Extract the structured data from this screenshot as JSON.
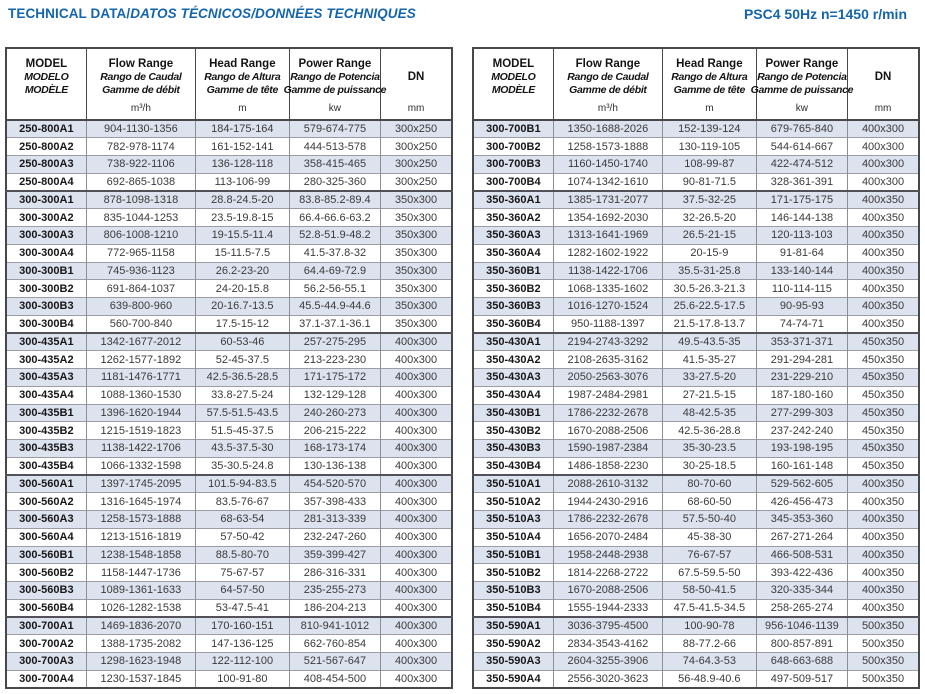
{
  "titlebar": {
    "main": "TECHNICAL DATA/",
    "main_italic": "DATOS TÉCNICOS/DONNÉES TECHNIQUES",
    "right": "PSC4 50Hz  n=1450 r/min"
  },
  "colors": {
    "accent_blue": "#1565ac",
    "row_stripe": "#dde3ee",
    "border_dark": "#48484c"
  },
  "header": {
    "model_lines": [
      "MODEL",
      "MODELO",
      "MODÈLE"
    ],
    "flow_lines": [
      "Flow Range",
      "Rango de Caudal",
      "Gamme de débit"
    ],
    "head_lines": [
      "Head Range",
      "Rango de Altura",
      "Gamme de tête"
    ],
    "power_lines": [
      "Power Range",
      "Rango de Potencia",
      "Gamme de puissance"
    ],
    "dn_label": "DN",
    "units": {
      "flow": "m³/h",
      "head": "m",
      "power": "kw",
      "dn": "mm"
    }
  },
  "tables": [
    {
      "rows": [
        {
          "model": "250-800A1",
          "flow": "904-1130-1356",
          "head": "184-175-164",
          "power": "579-674-775",
          "dn": "300x250",
          "group": false
        },
        {
          "model": "250-800A2",
          "flow": "782-978-1174",
          "head": "161-152-141",
          "power": "444-513-578",
          "dn": "300x250",
          "group": false
        },
        {
          "model": "250-800A3",
          "flow": "738-922-1106",
          "head": "136-128-118",
          "power": "358-415-465",
          "dn": "300x250",
          "group": false
        },
        {
          "model": "250-800A4",
          "flow": "692-865-1038",
          "head": "113-106-99",
          "power": "280-325-360",
          "dn": "300x250",
          "group": false
        },
        {
          "model": "300-300A1",
          "flow": "878-1098-1318",
          "head": "28.8-24.5-20",
          "power": "83.8-85.2-89.4",
          "dn": "350x300",
          "group": true
        },
        {
          "model": "300-300A2",
          "flow": "835-1044-1253",
          "head": "23.5-19.8-15",
          "power": "66.4-66.6-63.2",
          "dn": "350x300",
          "group": false
        },
        {
          "model": "300-300A3",
          "flow": "806-1008-1210",
          "head": "19-15.5-11.4",
          "power": "52.8-51.9-48.2",
          "dn": "350x300",
          "group": false
        },
        {
          "model": "300-300A4",
          "flow": "772-965-1158",
          "head": "15-11.5-7.5",
          "power": "41.5-37.8-32",
          "dn": "350x300",
          "group": false
        },
        {
          "model": "300-300B1",
          "flow": "745-936-1123",
          "head": "26.2-23-20",
          "power": "64.4-69-72.9",
          "dn": "350x300",
          "group": false
        },
        {
          "model": "300-300B2",
          "flow": "691-864-1037",
          "head": "24-20-15.8",
          "power": "56.2-56-55.1",
          "dn": "350x300",
          "group": false
        },
        {
          "model": "300-300B3",
          "flow": "639-800-960",
          "head": "20-16.7-13.5",
          "power": "45.5-44.9-44.6",
          "dn": "350x300",
          "group": false
        },
        {
          "model": "300-300B4",
          "flow": "560-700-840",
          "head": "17.5-15-12",
          "power": "37.1-37.1-36.1",
          "dn": "350x300",
          "group": false
        },
        {
          "model": "300-435A1",
          "flow": "1342-1677-2012",
          "head": "60-53-46",
          "power": "257-275-295",
          "dn": "400x300",
          "group": true
        },
        {
          "model": "300-435A2",
          "flow": "1262-1577-1892",
          "head": "52-45-37.5",
          "power": "213-223-230",
          "dn": "400x300",
          "group": false
        },
        {
          "model": "300-435A3",
          "flow": "1181-1476-1771",
          "head": "42.5-36.5-28.5",
          "power": "171-175-172",
          "dn": "400x300",
          "group": false
        },
        {
          "model": "300-435A4",
          "flow": "1088-1360-1530",
          "head": "33.8-27.5-24",
          "power": "132-129-128",
          "dn": "400x300",
          "group": false
        },
        {
          "model": "300-435B1",
          "flow": "1396-1620-1944",
          "head": "57.5-51.5-43.5",
          "power": "240-260-273",
          "dn": "400x300",
          "group": false
        },
        {
          "model": "300-435B2",
          "flow": "1215-1519-1823",
          "head": "51.5-45-37.5",
          "power": "206-215-222",
          "dn": "400x300",
          "group": false
        },
        {
          "model": "300-435B3",
          "flow": "1138-1422-1706",
          "head": "43.5-37.5-30",
          "power": "168-173-174",
          "dn": "400x300",
          "group": false
        },
        {
          "model": "300-435B4",
          "flow": "1066-1332-1598",
          "head": "35-30.5-24.8",
          "power": "130-136-138",
          "dn": "400x300",
          "group": false
        },
        {
          "model": "300-560A1",
          "flow": "1397-1745-2095",
          "head": "101.5-94-83.5",
          "power": "454-520-570",
          "dn": "400x300",
          "group": true
        },
        {
          "model": "300-560A2",
          "flow": "1316-1645-1974",
          "head": "83.5-76-67",
          "power": "357-398-433",
          "dn": "400x300",
          "group": false
        },
        {
          "model": "300-560A3",
          "flow": "1258-1573-1888",
          "head": "68-63-54",
          "power": "281-313-339",
          "dn": "400x300",
          "group": false
        },
        {
          "model": "300-560A4",
          "flow": "1213-1516-1819",
          "head": "57-50-42",
          "power": "232-247-260",
          "dn": "400x300",
          "group": false
        },
        {
          "model": "300-560B1",
          "flow": "1238-1548-1858",
          "head": "88.5-80-70",
          "power": "359-399-427",
          "dn": "400x300",
          "group": false
        },
        {
          "model": "300-560B2",
          "flow": "1158-1447-1736",
          "head": "75-67-57",
          "power": "286-316-331",
          "dn": "400x300",
          "group": false
        },
        {
          "model": "300-560B3",
          "flow": "1089-1361-1633",
          "head": "64-57-50",
          "power": "235-255-273",
          "dn": "400x300",
          "group": false
        },
        {
          "model": "300-560B4",
          "flow": "1026-1282-1538",
          "head": "53-47.5-41",
          "power": "186-204-213",
          "dn": "400x300",
          "group": false
        },
        {
          "model": "300-700A1",
          "flow": "1469-1836-2070",
          "head": "170-160-151",
          "power": "810-941-1012",
          "dn": "400x300",
          "group": true
        },
        {
          "model": "300-700A2",
          "flow": "1388-1735-2082",
          "head": "147-136-125",
          "power": "662-760-854",
          "dn": "400x300",
          "group": false
        },
        {
          "model": "300-700A3",
          "flow": "1298-1623-1948",
          "head": "122-112-100",
          "power": "521-567-647",
          "dn": "400x300",
          "group": false
        },
        {
          "model": "300-700A4",
          "flow": "1230-1537-1845",
          "head": "100-91-80",
          "power": "408-454-500",
          "dn": "400x300",
          "group": false
        }
      ]
    },
    {
      "rows": [
        {
          "model": "300-700B1",
          "flow": "1350-1688-2026",
          "head": "152-139-124",
          "power": "679-765-840",
          "dn": "400x300",
          "group": false
        },
        {
          "model": "300-700B2",
          "flow": "1258-1573-1888",
          "head": "130-119-105",
          "power": "544-614-667",
          "dn": "400x300",
          "group": false
        },
        {
          "model": "300-700B3",
          "flow": "1160-1450-1740",
          "head": "108-99-87",
          "power": "422-474-512",
          "dn": "400x300",
          "group": false
        },
        {
          "model": "300-700B4",
          "flow": "1074-1342-1610",
          "head": "90-81-71.5",
          "power": "328-361-391",
          "dn": "400x300",
          "group": false
        },
        {
          "model": "350-360A1",
          "flow": "1385-1731-2077",
          "head": "37.5-32-25",
          "power": "171-175-175",
          "dn": "400x350",
          "group": true
        },
        {
          "model": "350-360A2",
          "flow": "1354-1692-2030",
          "head": "32-26.5-20",
          "power": "146-144-138",
          "dn": "400x350",
          "group": false
        },
        {
          "model": "350-360A3",
          "flow": "1313-1641-1969",
          "head": "26.5-21-15",
          "power": "120-113-103",
          "dn": "400x350",
          "group": false
        },
        {
          "model": "350-360A4",
          "flow": "1282-1602-1922",
          "head": "20-15-9",
          "power": "91-81-64",
          "dn": "400x350",
          "group": false
        },
        {
          "model": "350-360B1",
          "flow": "1138-1422-1706",
          "head": "35.5-31-25.8",
          "power": "133-140-144",
          "dn": "400x350",
          "group": false
        },
        {
          "model": "350-360B2",
          "flow": "1068-1335-1602",
          "head": "30.5-26.3-21.3",
          "power": "110-114-115",
          "dn": "400x350",
          "group": false
        },
        {
          "model": "350-360B3",
          "flow": "1016-1270-1524",
          "head": "25.6-22.5-17.5",
          "power": "90-95-93",
          "dn": "400x350",
          "group": false
        },
        {
          "model": "350-360B4",
          "flow": "950-1188-1397",
          "head": "21.5-17.8-13.7",
          "power": "74-74-71",
          "dn": "400x350",
          "group": false
        },
        {
          "model": "350-430A1",
          "flow": "2194-2743-3292",
          "head": "49.5-43.5-35",
          "power": "353-371-371",
          "dn": "450x350",
          "group": true
        },
        {
          "model": "350-430A2",
          "flow": "2108-2635-3162",
          "head": "41.5-35-27",
          "power": "291-294-281",
          "dn": "450x350",
          "group": false
        },
        {
          "model": "350-430A3",
          "flow": "2050-2563-3076",
          "head": "33-27.5-20",
          "power": "231-229-210",
          "dn": "450x350",
          "group": false
        },
        {
          "model": "350-430A4",
          "flow": "1987-2484-2981",
          "head": "27-21.5-15",
          "power": "187-180-160",
          "dn": "450x350",
          "group": false
        },
        {
          "model": "350-430B1",
          "flow": "1786-2232-2678",
          "head": "48-42.5-35",
          "power": "277-299-303",
          "dn": "450x350",
          "group": false
        },
        {
          "model": "350-430B2",
          "flow": "1670-2088-2506",
          "head": "42.5-36-28.8",
          "power": "237-242-240",
          "dn": "450x350",
          "group": false
        },
        {
          "model": "350-430B3",
          "flow": "1590-1987-2384",
          "head": "35-30-23.5",
          "power": "193-198-195",
          "dn": "450x350",
          "group": false
        },
        {
          "model": "350-430B4",
          "flow": "1486-1858-2230",
          "head": "30-25-18.5",
          "power": "160-161-148",
          "dn": "450x350",
          "group": false
        },
        {
          "model": "350-510A1",
          "flow": "2088-2610-3132",
          "head": "80-70-60",
          "power": "529-562-605",
          "dn": "400x350",
          "group": true
        },
        {
          "model": "350-510A2",
          "flow": "1944-2430-2916",
          "head": "68-60-50",
          "power": "426-456-473",
          "dn": "400x350",
          "group": false
        },
        {
          "model": "350-510A3",
          "flow": "1786-2232-2678",
          "head": "57.5-50-40",
          "power": "345-353-360",
          "dn": "400x350",
          "group": false
        },
        {
          "model": "350-510A4",
          "flow": "1656-2070-2484",
          "head": "45-38-30",
          "power": "267-271-264",
          "dn": "400x350",
          "group": false
        },
        {
          "model": "350-510B1",
          "flow": "1958-2448-2938",
          "head": "76-67-57",
          "power": "466-508-531",
          "dn": "400x350",
          "group": false
        },
        {
          "model": "350-510B2",
          "flow": "1814-2268-2722",
          "head": "67.5-59.5-50",
          "power": "393-422-436",
          "dn": "400x350",
          "group": false
        },
        {
          "model": "350-510B3",
          "flow": "1670-2088-2506",
          "head": "58-50-41.5",
          "power": "320-335-344",
          "dn": "400x350",
          "group": false
        },
        {
          "model": "350-510B4",
          "flow": "1555-1944-2333",
          "head": "47.5-41.5-34.5",
          "power": "258-265-274",
          "dn": "400x350",
          "group": false
        },
        {
          "model": "350-590A1",
          "flow": "3036-3795-4500",
          "head": "100-90-78",
          "power": "956-1046-1139",
          "dn": "500x350",
          "group": true
        },
        {
          "model": "350-590A2",
          "flow": "2834-3543-4162",
          "head": "88-77.2-66",
          "power": "800-857-891",
          "dn": "500x350",
          "group": false
        },
        {
          "model": "350-590A3",
          "flow": "2604-3255-3906",
          "head": "74-64.3-53",
          "power": "648-663-688",
          "dn": "500x350",
          "group": false
        },
        {
          "model": "350-590A4",
          "flow": "2556-3020-3623",
          "head": "56-48.9-40.6",
          "power": "497-509-517",
          "dn": "500x350",
          "group": false
        }
      ]
    }
  ]
}
